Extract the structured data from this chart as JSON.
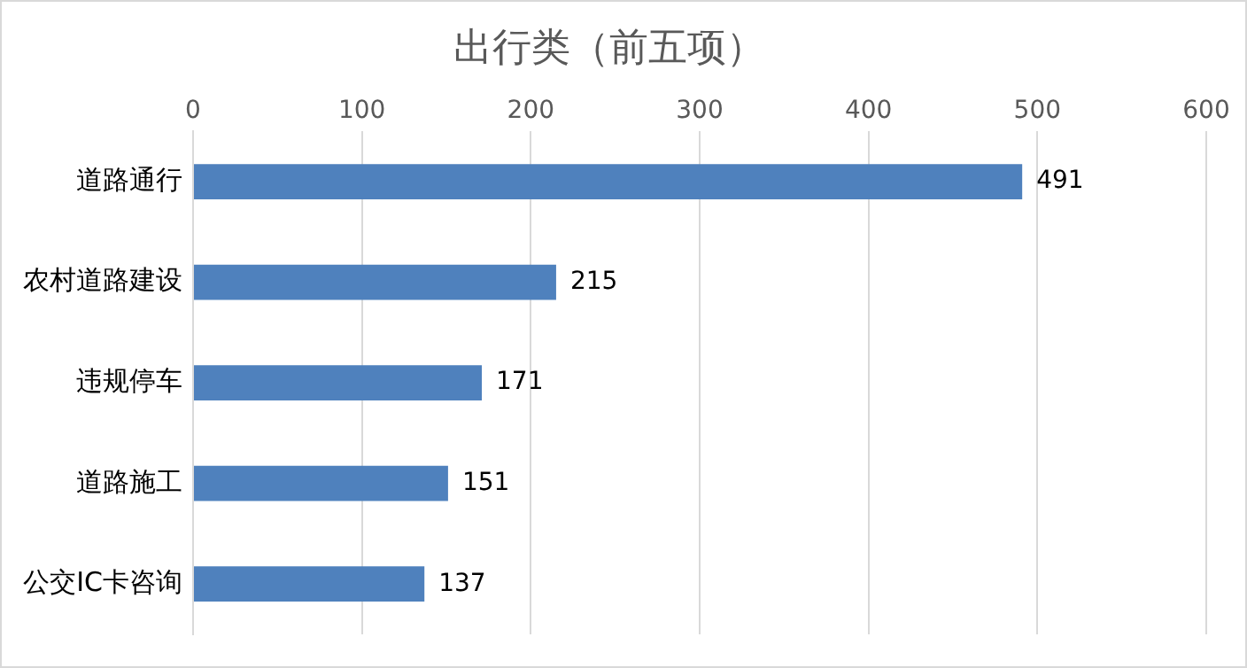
{
  "chart_data": {
    "type": "bar",
    "orientation": "horizontal",
    "title": "出行类（前五项）",
    "categories": [
      "道路通行",
      "农村道路建设",
      "违规停车",
      "道路施工",
      "公交IC卡咨询"
    ],
    "values": [
      491,
      215,
      171,
      151,
      137
    ],
    "color": "#4f81bd",
    "xlim": [
      0,
      600
    ],
    "xticks": [
      0,
      100,
      200,
      300,
      400,
      500,
      600
    ],
    "grid": "x",
    "data_labels": true
  }
}
